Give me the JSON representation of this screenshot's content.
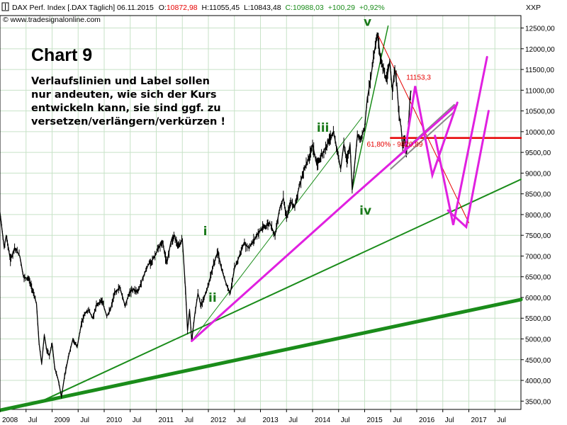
{
  "chart_data": {
    "type": "line",
    "title": "DAX Perf. Index [.DAX  Täglich] 06.11.2015",
    "ohlc": {
      "open_label": "O:",
      "open": "10872,98",
      "high_label": "H:",
      "high": "11055,45",
      "low_label": "L:",
      "low": "10843,48",
      "close_label": "C:",
      "close": "10988,03",
      "change": "+100,29",
      "change_pct": "+0,92%"
    },
    "source": "www.tradesignalonline.com",
    "currency": "XXP",
    "annotation_title": "Chart 9",
    "annotation_lines": [
      "Verlaufslinien und Label sollen",
      "nur andeuten, wie sich der Kurs",
      "entwickeln kann, sie sind ggf. zu",
      "versetzen/verlängern/verkürzen !"
    ],
    "ylim": [
      3300,
      12800
    ],
    "yticks": [
      3500,
      4000,
      4500,
      5000,
      5500,
      6000,
      6500,
      7000,
      7500,
      8000,
      8500,
      9000,
      9500,
      10000,
      10500,
      11000,
      11500,
      12000,
      12500
    ],
    "ytick_labels": [
      "3500,00",
      "4000,00",
      "4500,00",
      "5000,00",
      "5500,00",
      "6000,00",
      "6500,00",
      "7000,00",
      "7500,00",
      "8000,00",
      "8500,00",
      "9000,00",
      "9500,00",
      "10000,00",
      "10500,00",
      "11000,00",
      "11500,00",
      "12000,00",
      "12500,00"
    ],
    "xlim": [
      2008.0,
      2018.0
    ],
    "xticks": [
      {
        "t": 2008.0,
        "label": "2008"
      },
      {
        "t": 2008.5,
        "label": "Jul"
      },
      {
        "t": 2009.0,
        "label": "2009"
      },
      {
        "t": 2009.5,
        "label": "Jul"
      },
      {
        "t": 2010.0,
        "label": "2010"
      },
      {
        "t": 2010.5,
        "label": "Jul"
      },
      {
        "t": 2011.0,
        "label": "2011"
      },
      {
        "t": 2011.5,
        "label": "Jul"
      },
      {
        "t": 2012.0,
        "label": "2012"
      },
      {
        "t": 2012.5,
        "label": "Jul"
      },
      {
        "t": 2013.0,
        "label": "2013"
      },
      {
        "t": 2013.5,
        "label": "Jul"
      },
      {
        "t": 2014.0,
        "label": "2014"
      },
      {
        "t": 2014.5,
        "label": "Jul"
      },
      {
        "t": 2015.0,
        "label": "2015"
      },
      {
        "t": 2015.5,
        "label": "Jul"
      },
      {
        "t": 2016.0,
        "label": "2016"
      },
      {
        "t": 2016.5,
        "label": "Jul"
      },
      {
        "t": 2017.0,
        "label": "2017"
      },
      {
        "t": 2017.5,
        "label": "Jul"
      }
    ],
    "series": [
      {
        "name": "DAX",
        "points": [
          [
            2007.9,
            8000
          ],
          [
            2008.0,
            8050
          ],
          [
            2008.08,
            7200
          ],
          [
            2008.12,
            7500
          ],
          [
            2008.2,
            6900
          ],
          [
            2008.28,
            7200
          ],
          [
            2008.38,
            7000
          ],
          [
            2008.45,
            6500
          ],
          [
            2008.55,
            6450
          ],
          [
            2008.62,
            6200
          ],
          [
            2008.7,
            5850
          ],
          [
            2008.75,
            4900
          ],
          [
            2008.8,
            4400
          ],
          [
            2008.85,
            5100
          ],
          [
            2008.9,
            4700
          ],
          [
            2008.95,
            4600
          ],
          [
            2009.0,
            4900
          ],
          [
            2009.05,
            4300
          ],
          [
            2009.12,
            4000
          ],
          [
            2009.18,
            3600
          ],
          [
            2009.24,
            4100
          ],
          [
            2009.32,
            4600
          ],
          [
            2009.4,
            5000
          ],
          [
            2009.48,
            4800
          ],
          [
            2009.56,
            5350
          ],
          [
            2009.62,
            5600
          ],
          [
            2009.7,
            5700
          ],
          [
            2009.78,
            5500
          ],
          [
            2009.85,
            5800
          ],
          [
            2009.95,
            5950
          ],
          [
            2010.05,
            5550
          ],
          [
            2010.12,
            5700
          ],
          [
            2010.2,
            6100
          ],
          [
            2010.3,
            6250
          ],
          [
            2010.4,
            5800
          ],
          [
            2010.48,
            6100
          ],
          [
            2010.55,
            6200
          ],
          [
            2010.65,
            6150
          ],
          [
            2010.75,
            6500
          ],
          [
            2010.85,
            6800
          ],
          [
            2010.95,
            6950
          ],
          [
            2011.05,
            7200
          ],
          [
            2011.12,
            7350
          ],
          [
            2011.2,
            6800
          ],
          [
            2011.28,
            7350
          ],
          [
            2011.35,
            7500
          ],
          [
            2011.42,
            7200
          ],
          [
            2011.5,
            7400
          ],
          [
            2011.56,
            6200
          ],
          [
            2011.6,
            5200
          ],
          [
            2011.64,
            5700
          ],
          [
            2011.68,
            4950
          ],
          [
            2011.74,
            5600
          ],
          [
            2011.8,
            6100
          ],
          [
            2011.86,
            5800
          ],
          [
            2011.92,
            6000
          ],
          [
            2012.0,
            6300
          ],
          [
            2012.1,
            6800
          ],
          [
            2012.18,
            7100
          ],
          [
            2012.25,
            6700
          ],
          [
            2012.35,
            6300
          ],
          [
            2012.42,
            6100
          ],
          [
            2012.5,
            6700
          ],
          [
            2012.58,
            6950
          ],
          [
            2012.68,
            7300
          ],
          [
            2012.78,
            7200
          ],
          [
            2012.88,
            7400
          ],
          [
            2012.98,
            7600
          ],
          [
            2013.08,
            7700
          ],
          [
            2013.18,
            7800
          ],
          [
            2013.28,
            7500
          ],
          [
            2013.36,
            8100
          ],
          [
            2013.44,
            8400
          ],
          [
            2013.5,
            7900
          ],
          [
            2013.58,
            8300
          ],
          [
            2013.66,
            8200
          ],
          [
            2013.74,
            8650
          ],
          [
            2013.84,
            9100
          ],
          [
            2013.94,
            9400
          ],
          [
            2014.0,
            9700
          ],
          [
            2014.08,
            9200
          ],
          [
            2014.16,
            9400
          ],
          [
            2014.24,
            9600
          ],
          [
            2014.32,
            9800
          ],
          [
            2014.4,
            10000
          ],
          [
            2014.48,
            9500
          ],
          [
            2014.54,
            9100
          ],
          [
            2014.6,
            9700
          ],
          [
            2014.66,
            9300
          ],
          [
            2014.72,
            9700
          ],
          [
            2014.76,
            8600
          ],
          [
            2014.8,
            9100
          ],
          [
            2014.86,
            9900
          ],
          [
            2014.92,
            9800
          ],
          [
            2015.0,
            10100
          ],
          [
            2015.05,
            10800
          ],
          [
            2015.12,
            11300
          ],
          [
            2015.18,
            11900
          ],
          [
            2015.25,
            12350
          ],
          [
            2015.3,
            11800
          ],
          [
            2015.36,
            11500
          ],
          [
            2015.42,
            11200
          ],
          [
            2015.48,
            11700
          ],
          [
            2015.53,
            11000
          ],
          [
            2015.58,
            11500
          ],
          [
            2015.62,
            11100
          ],
          [
            2015.66,
            10400
          ],
          [
            2015.7,
            10100
          ],
          [
            2015.73,
            9600
          ],
          [
            2015.76,
            9900
          ],
          [
            2015.8,
            9400
          ],
          [
            2015.84,
            10100
          ],
          [
            2015.87,
            10800
          ],
          [
            2015.89,
            10988
          ]
        ]
      }
    ],
    "overlays": [
      {
        "name": "trend-line-2008-main",
        "color": "#1a8c1a",
        "width": 5,
        "points": [
          [
            2007.9,
            3280
          ],
          [
            2018.0,
            5950
          ]
        ]
      },
      {
        "name": "trend-line-2009",
        "color": "#1a8c1a",
        "width": 2,
        "points": [
          [
            2008.8,
            3500
          ],
          [
            2018.0,
            8850
          ]
        ]
      },
      {
        "name": "trend-line-2011-thin",
        "color": "#1a8c1a",
        "width": 1,
        "points": [
          [
            2011.68,
            4950
          ],
          [
            2014.95,
            10350
          ]
        ]
      },
      {
        "name": "trend-line-2014",
        "color": "#1a8c1a",
        "width": 1.5,
        "points": [
          [
            2014.76,
            8600
          ],
          [
            2015.45,
            12550
          ]
        ]
      },
      {
        "name": "resistance-red",
        "color": "#e60000",
        "width": 2.5,
        "points": [
          [
            2015.5,
            9850
          ],
          [
            2018.0,
            9850
          ]
        ]
      },
      {
        "name": "fall-line-red",
        "color": "#e60000",
        "width": 1,
        "points": [
          [
            2015.25,
            12350
          ],
          [
            2017.0,
            7800
          ]
        ]
      },
      {
        "name": "channel-grey",
        "color": "#8a8a8a",
        "width": 2,
        "points": [
          [
            2015.5,
            9100
          ],
          [
            2016.72,
            10480
          ]
        ]
      },
      {
        "name": "channel-grey-2",
        "color": "#8a8a8a",
        "width": 2,
        "points": [
          [
            2015.5,
            9250
          ],
          [
            2016.72,
            10650
          ]
        ]
      },
      {
        "name": "support-magenta",
        "color": "#e020e0",
        "width": 3,
        "points": [
          [
            2011.68,
            4950
          ],
          [
            2014.76,
            8420
          ],
          [
            2016.77,
            10650
          ]
        ]
      },
      {
        "name": "projection-1",
        "color": "#e020e0",
        "width": 3,
        "points": [
          [
            2015.77,
            9500
          ],
          [
            2015.97,
            11100
          ],
          [
            2016.3,
            8950
          ],
          [
            2016.78,
            10700
          ]
        ]
      },
      {
        "name": "projection-2",
        "color": "#e020e0",
        "width": 3,
        "points": [
          [
            2016.35,
            9900
          ],
          [
            2016.7,
            7750
          ],
          [
            2017.35,
            11800
          ]
        ]
      },
      {
        "name": "projection-3",
        "color": "#e020e0",
        "width": 3,
        "points": [
          [
            2016.6,
            8100
          ],
          [
            2016.95,
            7700
          ],
          [
            2017.38,
            10500
          ]
        ]
      }
    ],
    "wave_labels": [
      {
        "name": "wave-label-i",
        "text": "i",
        "t": 2011.9,
        "v": 7500
      },
      {
        "name": "wave-label-ii",
        "text": "ii",
        "t": 2012.0,
        "v": 5900
      },
      {
        "name": "wave-label-iii",
        "text": "iii",
        "t": 2014.08,
        "v": 10000
      },
      {
        "name": "wave-label-iv",
        "text": "iv",
        "t": 2014.9,
        "v": 8000
      },
      {
        "name": "wave-label-v",
        "text": "v",
        "t": 2014.98,
        "v": 12550
      }
    ],
    "level_labels": [
      {
        "name": "level-label-11153",
        "text": "11153,3",
        "t": 2015.8,
        "v": 11250,
        "color": "#e60000"
      },
      {
        "name": "level-label-fib",
        "text": "61,80% - 9820,89",
        "t": 2015.04,
        "v": 9640,
        "color": "#e60000"
      }
    ],
    "colors": {
      "price": "#000000",
      "grid": "#c7e2c7",
      "open_value": "#e60000",
      "close_value": "#1a8c1a",
      "wave_label": "#1a7a1a"
    }
  }
}
